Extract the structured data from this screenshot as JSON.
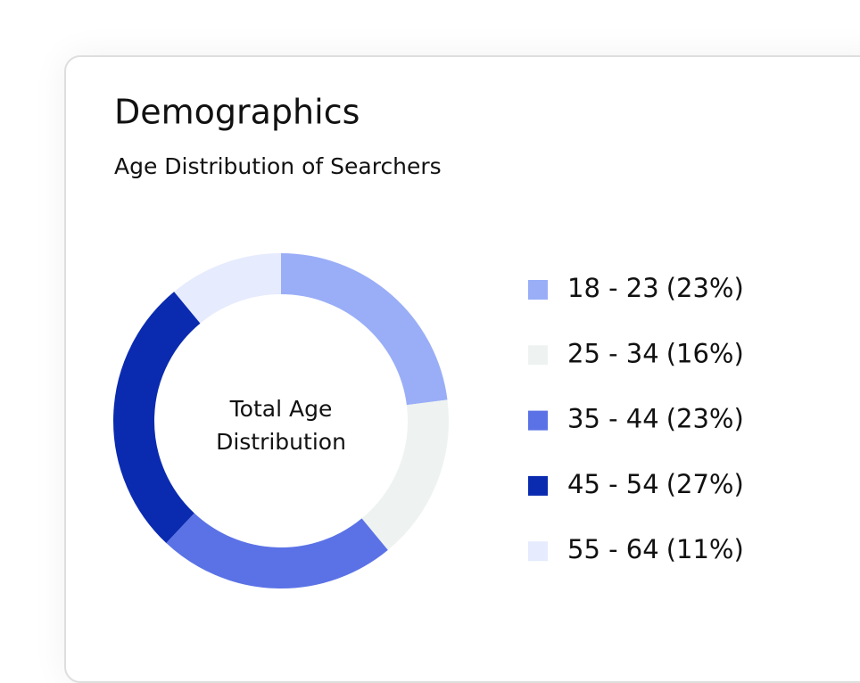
{
  "chart_data": {
    "type": "pie",
    "donut": true,
    "title": "Demographics",
    "subtitle": "Age Distribution of Searchers",
    "center_label": "Total Age Distribution",
    "categories": [
      "18 - 23",
      "25 - 34",
      "35 - 44",
      "45 - 54",
      "55 - 64"
    ],
    "values": [
      23,
      16,
      23,
      27,
      11
    ],
    "value_labels": [
      "(23%)",
      "(16%)",
      "(23%)",
      "(27%)",
      "(11%)"
    ],
    "colors": [
      "#9aaef7",
      "#eef3f1",
      "#5b72e6",
      "#0a2bb0",
      "#e6ebfd"
    ],
    "legend": "right"
  }
}
